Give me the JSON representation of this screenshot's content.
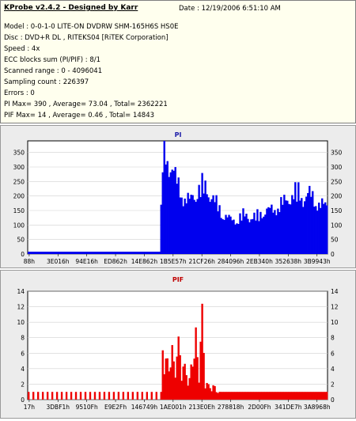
{
  "header": {
    "title": "KProbe v2.4.2 - Designed by Karr",
    "date": "Date : 12/19/2006 6:51:10 AM",
    "lines": [
      "Model : 0-0-1-0 LITE-ON DVDRW SHM-165H6S HS0E",
      "Disc : DVD+R DL , RITEKS04 [RiTEK Corporation]",
      "Speed : 4x",
      "ECC blocks sum (PI/PIF) : 8/1",
      "Scanned range : 0 - 4096041",
      "Sampling count : 226397",
      "Errors : 0",
      "PI Max= 390 , Average= 73.04 , Total= 2362221",
      "PIF Max= 14 , Average= 0.46 , Total= 14843"
    ]
  },
  "chart_data": [
    {
      "type": "area",
      "title": "PI",
      "ylim": [
        0,
        390
      ],
      "yticks": [
        0,
        50,
        100,
        150,
        200,
        250,
        300,
        350
      ],
      "xticks": [
        "88h",
        "3E016h",
        "94E16h",
        "ED862h",
        "14E862h",
        "1B5E57h",
        "21CF26h",
        "284096h",
        "2EB340h",
        "352638h",
        "3B9943h"
      ],
      "color": "#0000ee",
      "series": [
        {
          "x": [
            0,
            44,
            45,
            46,
            47,
            48,
            49,
            50,
            51,
            52,
            54,
            56,
            58,
            60,
            62,
            64,
            66,
            68,
            70,
            72,
            74,
            76,
            78,
            80,
            82,
            84,
            86,
            88,
            90,
            92,
            94,
            96,
            98,
            100
          ],
          "values": [
            8,
            8,
            350,
            360,
            330,
            310,
            280,
            250,
            230,
            200,
            190,
            220,
            245,
            230,
            195,
            160,
            135,
            120,
            125,
            140,
            135,
            130,
            150,
            155,
            160,
            175,
            190,
            210,
            225,
            200,
            215,
            190,
            175,
            170
          ]
        }
      ]
    },
    {
      "type": "bar",
      "title": "PIF",
      "ylim": [
        0,
        14
      ],
      "yticks": [
        0,
        2,
        4,
        6,
        8,
        10,
        12,
        14
      ],
      "xticks": [
        "17h",
        "3DBF1h",
        "9510Fh",
        "E9E2Fh",
        "146749h",
        "1AE001h",
        "213E0Eh",
        "278818h",
        "2D00Fh",
        "341DE7h",
        "3A8968h"
      ],
      "color": "#ee0000",
      "series": [
        {
          "x": [
            0,
            44,
            45,
            46,
            47,
            48,
            49,
            50,
            51,
            52,
            54,
            56,
            57,
            58,
            59,
            60,
            62,
            64,
            70,
            80,
            90,
            100
          ],
          "values": [
            1,
            1,
            8,
            6,
            5,
            8,
            4,
            9,
            6,
            5,
            3,
            10,
            3,
            14,
            4,
            2,
            2,
            1,
            1,
            1,
            1,
            1
          ]
        }
      ]
    }
  ]
}
